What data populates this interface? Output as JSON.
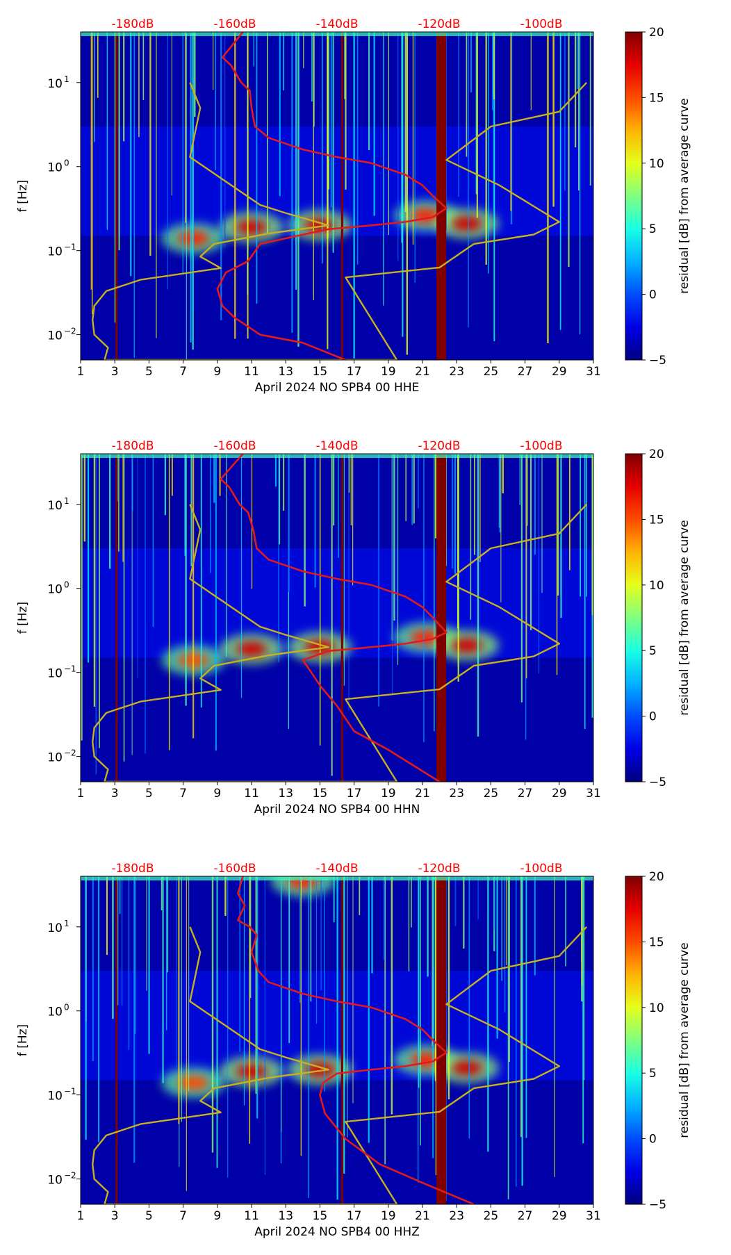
{
  "figure": {
    "y_axis_label": "f [Hz]",
    "colorbar_label": "residual [dB] from average curve",
    "colorbar_ticks": [
      "20",
      "15",
      "10",
      "5",
      "0",
      "−5"
    ],
    "colorbar_values": [
      20,
      15,
      10,
      5,
      0,
      -5
    ],
    "top_db_labels": [
      "-180dB",
      "-160dB",
      "-140dB",
      "-120dB",
      "-100dB"
    ],
    "x_tick_labels": [
      "1",
      "3",
      "5",
      "7",
      "9",
      "11",
      "13",
      "15",
      "17",
      "19",
      "21",
      "23",
      "25",
      "27",
      "29",
      "31"
    ],
    "y_tick_labels": [
      {
        "base": "10",
        "exp": "1"
      },
      {
        "base": "10",
        "exp": "0"
      },
      {
        "base": "10",
        "exp": "−1"
      },
      {
        "base": "10",
        "exp": "−2"
      }
    ],
    "colors": {
      "red_curve": "#e31a1c",
      "yellow_curve": "#c8b020",
      "db_label": "#ff0000"
    }
  },
  "chart_data": [
    {
      "type": "heatmap",
      "title": "",
      "xlabel": "April 2024 NO SPB4 00 HHE",
      "ylabel": "f [Hz]",
      "xlim": [
        1,
        31
      ],
      "ylim": [
        0.005,
        40
      ],
      "yscale": "log",
      "colorbar_range": [
        -5,
        20
      ],
      "top_db_axis": [
        -180,
        -160,
        -140,
        -120,
        -100
      ],
      "hot_spots": [
        {
          "day": 7.6,
          "freq": 0.14,
          "value": 16
        },
        {
          "day": 11.0,
          "freq": 0.19,
          "value": 18
        },
        {
          "day": 15.0,
          "freq": 0.2,
          "value": 18
        },
        {
          "day": 21.2,
          "freq": 0.26,
          "value": 16
        },
        {
          "day": 23.6,
          "freq": 0.21,
          "value": 18
        }
      ],
      "vertical_bands": [
        {
          "day": 3.1,
          "value": 20
        },
        {
          "day": 16.3,
          "value": 20
        },
        {
          "day": 22.1,
          "value": 20
        }
      ],
      "red_curve_points": [
        [
          10.5,
          40
        ],
        [
          9.3,
          20
        ],
        [
          9.8,
          16
        ],
        [
          10.4,
          10
        ],
        [
          10.9,
          8
        ],
        [
          11.0,
          5
        ],
        [
          11.2,
          3
        ],
        [
          12,
          2.2
        ],
        [
          14,
          1.6
        ],
        [
          16,
          1.3
        ],
        [
          18,
          1.1
        ],
        [
          20,
          0.8
        ],
        [
          21,
          0.6
        ],
        [
          21.6,
          0.45
        ],
        [
          22.4,
          0.32
        ],
        [
          21.6,
          0.25
        ],
        [
          20,
          0.22
        ],
        [
          18,
          0.2
        ],
        [
          15.5,
          0.18
        ],
        [
          13,
          0.14
        ],
        [
          11.5,
          0.12
        ],
        [
          10.8,
          0.075
        ],
        [
          9.5,
          0.055
        ],
        [
          9.0,
          0.035
        ],
        [
          9.3,
          0.022
        ],
        [
          10.0,
          0.016
        ],
        [
          11.5,
          0.01
        ],
        [
          14,
          0.008
        ],
        [
          16.5,
          0.005
        ]
      ],
      "yellow_curve_points": [
        [
          30.6,
          10
        ],
        [
          29.0,
          4.5
        ],
        [
          25.0,
          3.0
        ],
        [
          22.4,
          1.2
        ],
        [
          25.5,
          0.6
        ],
        [
          29.0,
          0.22
        ],
        [
          27.5,
          0.155
        ],
        [
          24.0,
          0.12
        ],
        [
          22.0,
          0.063
        ],
        [
          16.5,
          0.048
        ],
        [
          19.5,
          0.005
        ],
        [
          2.4,
          0.005
        ],
        [
          2.6,
          0.007
        ],
        [
          1.8,
          0.01
        ],
        [
          1.7,
          0.015
        ],
        [
          1.8,
          0.022
        ],
        [
          2.5,
          0.033
        ],
        [
          4.5,
          0.045
        ],
        [
          9.2,
          0.062
        ],
        [
          8.0,
          0.085
        ],
        [
          8.8,
          0.12
        ],
        [
          12,
          0.16
        ],
        [
          15.5,
          0.2
        ],
        [
          13,
          0.28
        ],
        [
          11.5,
          0.35
        ],
        [
          7.4,
          1.3
        ],
        [
          8.0,
          5
        ],
        [
          7.4,
          10
        ]
      ]
    },
    {
      "type": "heatmap",
      "title": "",
      "xlabel": "April 2024 NO SPB4 00 HHN",
      "ylabel": "f [Hz]",
      "xlim": [
        1,
        31
      ],
      "ylim": [
        0.005,
        40
      ],
      "yscale": "log",
      "colorbar_range": [
        -5,
        20
      ],
      "top_db_axis": [
        -180,
        -160,
        -140,
        -120,
        -100
      ],
      "hot_spots": [
        {
          "day": 7.6,
          "freq": 0.14,
          "value": 15
        },
        {
          "day": 11.0,
          "freq": 0.19,
          "value": 18
        },
        {
          "day": 15.0,
          "freq": 0.2,
          "value": 18
        },
        {
          "day": 21.2,
          "freq": 0.26,
          "value": 16
        },
        {
          "day": 23.6,
          "freq": 0.21,
          "value": 18
        }
      ],
      "vertical_bands": [
        {
          "day": 3.1,
          "value": 20
        },
        {
          "day": 16.3,
          "value": 20
        },
        {
          "day": 22.1,
          "value": 20
        }
      ],
      "red_curve_points": [
        [
          10.5,
          40
        ],
        [
          9.2,
          20
        ],
        [
          9.7,
          16
        ],
        [
          10.3,
          10
        ],
        [
          10.8,
          8
        ],
        [
          11.1,
          5
        ],
        [
          11.3,
          3
        ],
        [
          12,
          2.2
        ],
        [
          14,
          1.6
        ],
        [
          16,
          1.3
        ],
        [
          18,
          1.1
        ],
        [
          20,
          0.8
        ],
        [
          21,
          0.6
        ],
        [
          21.6,
          0.45
        ],
        [
          22.4,
          0.3
        ],
        [
          21.6,
          0.25
        ],
        [
          20,
          0.22
        ],
        [
          18,
          0.2
        ],
        [
          15.5,
          0.18
        ],
        [
          14,
          0.14
        ],
        [
          14.5,
          0.1
        ],
        [
          15.0,
          0.07
        ],
        [
          16.0,
          0.04
        ],
        [
          17.0,
          0.02
        ],
        [
          19.0,
          0.012
        ],
        [
          22.0,
          0.005
        ]
      ],
      "yellow_curve_points": [
        [
          30.6,
          10
        ],
        [
          29.0,
          4.5
        ],
        [
          25.0,
          3.0
        ],
        [
          22.4,
          1.2
        ],
        [
          25.5,
          0.6
        ],
        [
          29.0,
          0.22
        ],
        [
          27.5,
          0.155
        ],
        [
          24.0,
          0.12
        ],
        [
          22.0,
          0.063
        ],
        [
          16.5,
          0.048
        ],
        [
          19.5,
          0.005
        ],
        [
          2.4,
          0.005
        ],
        [
          2.6,
          0.007
        ],
        [
          1.8,
          0.01
        ],
        [
          1.7,
          0.015
        ],
        [
          1.8,
          0.022
        ],
        [
          2.5,
          0.033
        ],
        [
          4.5,
          0.045
        ],
        [
          9.2,
          0.062
        ],
        [
          8.0,
          0.085
        ],
        [
          8.8,
          0.12
        ],
        [
          12,
          0.16
        ],
        [
          15.5,
          0.2
        ],
        [
          13,
          0.28
        ],
        [
          11.5,
          0.35
        ],
        [
          7.4,
          1.3
        ],
        [
          8.0,
          5
        ],
        [
          7.4,
          10
        ]
      ]
    },
    {
      "type": "heatmap",
      "title": "",
      "xlabel": "April 2024 NO SPB4 00 HHZ",
      "ylabel": "f [Hz]",
      "xlim": [
        1,
        31
      ],
      "ylim": [
        0.005,
        40
      ],
      "yscale": "log",
      "colorbar_range": [
        -5,
        20
      ],
      "top_db_axis": [
        -180,
        -160,
        -140,
        -120,
        -100
      ],
      "hot_spots": [
        {
          "day": 7.6,
          "freq": 0.14,
          "value": 15
        },
        {
          "day": 11.0,
          "freq": 0.19,
          "value": 18
        },
        {
          "day": 15.0,
          "freq": 0.2,
          "value": 18
        },
        {
          "day": 21.2,
          "freq": 0.26,
          "value": 16
        },
        {
          "day": 23.6,
          "freq": 0.21,
          "value": 18
        },
        {
          "day": 14.0,
          "freq": 35,
          "value": 16
        }
      ],
      "vertical_bands": [
        {
          "day": 3.1,
          "value": 20
        },
        {
          "day": 16.3,
          "value": 20
        },
        {
          "day": 22.1,
          "value": 20
        }
      ],
      "red_curve_points": [
        [
          10.5,
          40
        ],
        [
          10.2,
          25
        ],
        [
          10.6,
          18
        ],
        [
          10.2,
          12
        ],
        [
          10.9,
          10
        ],
        [
          11.3,
          8
        ],
        [
          11.0,
          5
        ],
        [
          11.4,
          3
        ],
        [
          12,
          2.2
        ],
        [
          14,
          1.6
        ],
        [
          16,
          1.3
        ],
        [
          18,
          1.1
        ],
        [
          20,
          0.8
        ],
        [
          21,
          0.6
        ],
        [
          21.6,
          0.45
        ],
        [
          22.4,
          0.32
        ],
        [
          21.6,
          0.25
        ],
        [
          20,
          0.22
        ],
        [
          18,
          0.2
        ],
        [
          16,
          0.18
        ],
        [
          15.2,
          0.14
        ],
        [
          15.0,
          0.1
        ],
        [
          15.3,
          0.06
        ],
        [
          16.5,
          0.03
        ],
        [
          18.5,
          0.015
        ],
        [
          21.0,
          0.009
        ],
        [
          24.0,
          0.005
        ]
      ],
      "yellow_curve_points": [
        [
          30.6,
          10
        ],
        [
          29.0,
          4.5
        ],
        [
          25.0,
          3.0
        ],
        [
          22.4,
          1.2
        ],
        [
          25.5,
          0.6
        ],
        [
          29.0,
          0.22
        ],
        [
          27.5,
          0.155
        ],
        [
          24.0,
          0.12
        ],
        [
          22.0,
          0.063
        ],
        [
          16.5,
          0.048
        ],
        [
          19.5,
          0.005
        ],
        [
          2.4,
          0.005
        ],
        [
          2.6,
          0.007
        ],
        [
          1.8,
          0.01
        ],
        [
          1.7,
          0.015
        ],
        [
          1.8,
          0.022
        ],
        [
          2.5,
          0.033
        ],
        [
          4.5,
          0.045
        ],
        [
          9.2,
          0.062
        ],
        [
          8.0,
          0.085
        ],
        [
          8.8,
          0.12
        ],
        [
          12,
          0.16
        ],
        [
          15.5,
          0.2
        ],
        [
          13,
          0.28
        ],
        [
          11.5,
          0.35
        ],
        [
          7.4,
          1.3
        ],
        [
          8.0,
          5
        ],
        [
          7.4,
          10
        ]
      ]
    }
  ]
}
